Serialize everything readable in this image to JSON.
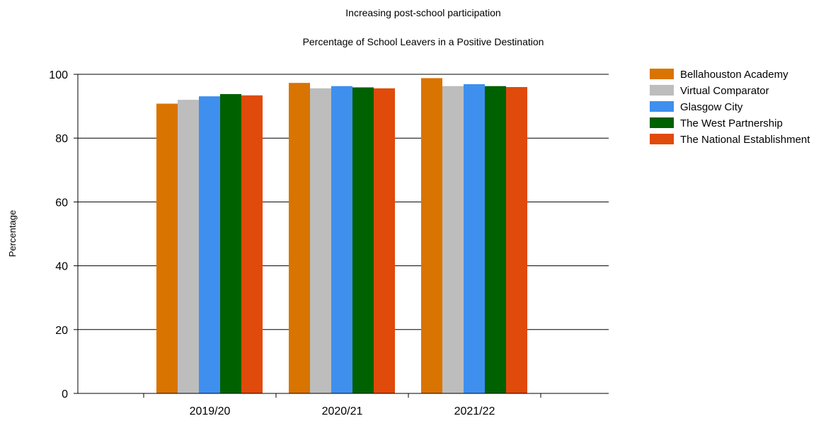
{
  "chart_data": {
    "type": "bar",
    "title": "Increasing post-school participation",
    "subtitle": "Percentage of School Leavers in a Positive Destination",
    "xlabel": "",
    "ylabel": "Percentage",
    "ylim": [
      0,
      100
    ],
    "yticks": [
      "0",
      "20",
      "40",
      "60",
      "80",
      "100"
    ],
    "grid": true,
    "legend_position": "top-right",
    "categories": [
      "2019/20",
      "2020/21",
      "2021/22"
    ],
    "series": [
      {
        "name": "Bellahouston Academy",
        "color": "#D97400",
        "values": [
          90.8,
          97.3,
          98.8
        ]
      },
      {
        "name": "Virtual Comparator",
        "color": "#BDBDBD",
        "values": [
          92.0,
          95.6,
          96.3
        ]
      },
      {
        "name": "Glasgow City",
        "color": "#3F8FEF",
        "values": [
          93.1,
          96.3,
          96.9
        ]
      },
      {
        "name": "The West Partnership",
        "color": "#006100",
        "values": [
          93.8,
          95.9,
          96.3
        ]
      },
      {
        "name": "The National Establishment",
        "color": "#E04A0B",
        "values": [
          93.4,
          95.6,
          96.0
        ]
      }
    ]
  }
}
